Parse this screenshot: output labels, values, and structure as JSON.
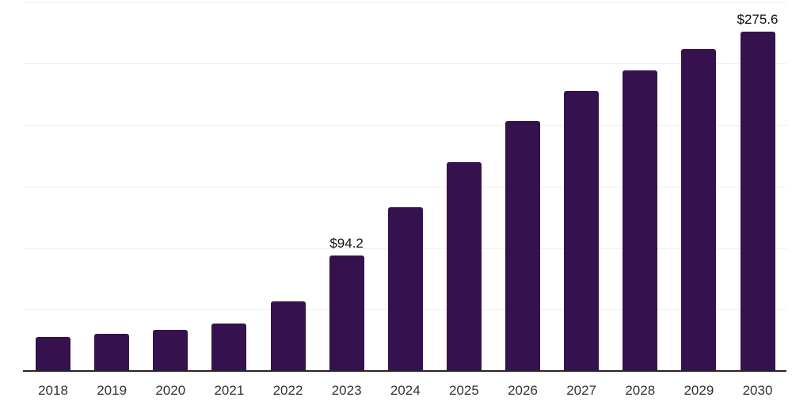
{
  "chart_data": {
    "type": "bar",
    "title": "",
    "xlabel": "",
    "ylabel": "",
    "categories": [
      "2018",
      "2019",
      "2020",
      "2021",
      "2022",
      "2023",
      "2024",
      "2025",
      "2026",
      "2027",
      "2028",
      "2029",
      "2030"
    ],
    "values": [
      27.6,
      30.1,
      33.4,
      38.9,
      56.8,
      94.2,
      133.3,
      169.5,
      203.4,
      227.5,
      244.6,
      261.7,
      275.6
    ],
    "data_labels": [
      null,
      null,
      null,
      null,
      null,
      "$94.2",
      null,
      null,
      null,
      null,
      null,
      null,
      "$275.6"
    ],
    "ylim": [
      0,
      300
    ],
    "grid_step": 50,
    "grid": true,
    "legend": false,
    "colors": {
      "bar": "#35124E",
      "axis": "#262626",
      "grid": "#efefef",
      "tick_label": "#333333",
      "value_label": "#111111",
      "background": "#ffffff"
    }
  }
}
